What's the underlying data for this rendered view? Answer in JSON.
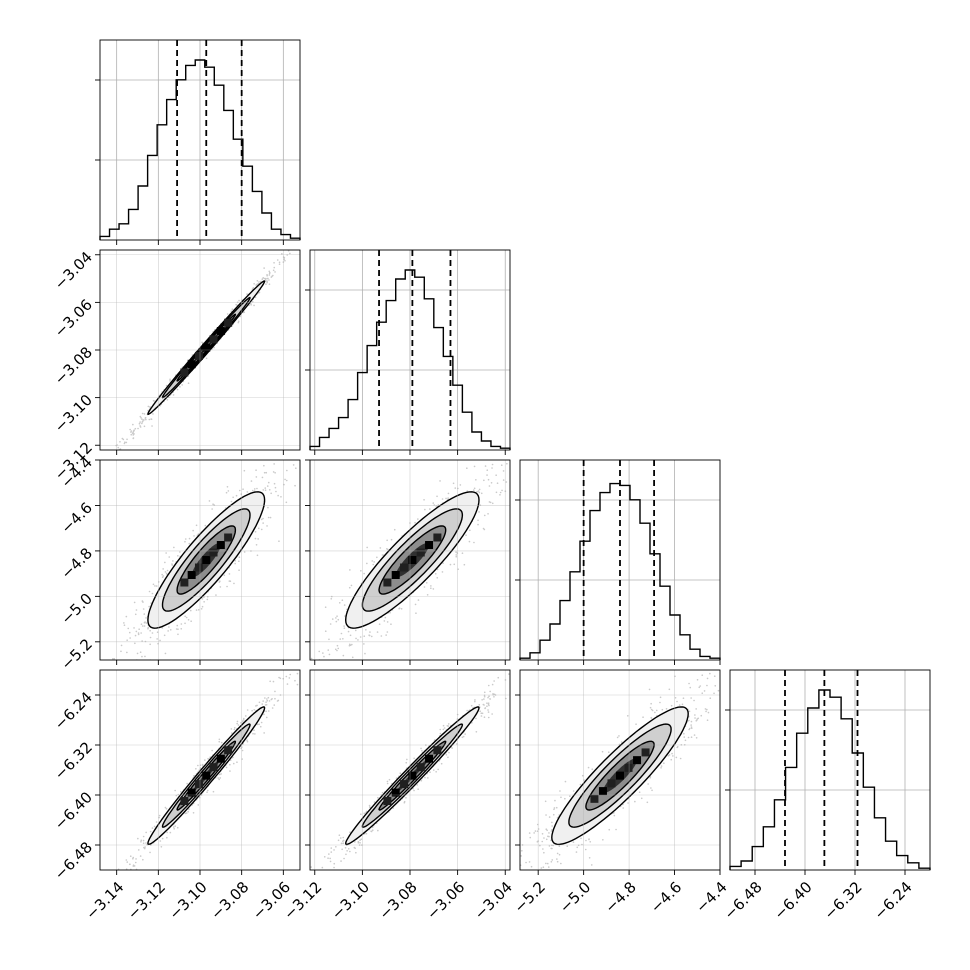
{
  "chart_data": {
    "type": "corner",
    "params": [
      {
        "range": [
          -3.148,
          -3.052
        ],
        "ticks": [
          "-3.14",
          "-3.12",
          "-3.10",
          "-3.08",
          "-3.06"
        ],
        "quantiles": [
          -3.111,
          -3.097,
          -3.08
        ],
        "median": -3.097,
        "sigma": 0.014,
        "hist": [
          0.02,
          0.06,
          0.09,
          0.17,
          0.3,
          0.47,
          0.64,
          0.78,
          0.89,
          0.97,
          1.0,
          0.96,
          0.86,
          0.72,
          0.56,
          0.41,
          0.27,
          0.15,
          0.06,
          0.03,
          0.01
        ]
      },
      {
        "range": [
          -3.122,
          -3.038
        ],
        "ticks": [
          "-3.12",
          "-3.10",
          "-3.08",
          "-3.06",
          "-3.04"
        ],
        "quantiles": [
          -3.093,
          -3.079,
          -3.063
        ],
        "median": -3.079,
        "sigma": 0.014,
        "hist": [
          0.02,
          0.07,
          0.12,
          0.18,
          0.28,
          0.43,
          0.58,
          0.71,
          0.83,
          0.95,
          1.0,
          0.96,
          0.84,
          0.68,
          0.52,
          0.36,
          0.21,
          0.1,
          0.05,
          0.02,
          0.01
        ]
      },
      {
        "range": [
          -5.28,
          -4.4
        ],
        "ticks": [
          "-5.2",
          "-5.0",
          "-4.8",
          "-4.6",
          "-4.4"
        ],
        "quantiles": [
          -5.0,
          -4.84,
          -4.69
        ],
        "median": -4.84,
        "sigma": 0.15,
        "hist": [
          0.01,
          0.04,
          0.11,
          0.2,
          0.33,
          0.49,
          0.66,
          0.83,
          0.93,
          0.98,
          0.97,
          0.89,
          0.76,
          0.59,
          0.41,
          0.25,
          0.14,
          0.06,
          0.02,
          0.01
        ]
      },
      {
        "range": [
          -6.52,
          -6.2
        ],
        "ticks": [
          "-6.48",
          "-6.40",
          "-6.32",
          "-6.24"
        ],
        "quantiles": [
          -6.432,
          -6.369,
          -6.316
        ],
        "median": -6.369,
        "sigma": 0.055,
        "hist": [
          0.02,
          0.05,
          0.13,
          0.24,
          0.39,
          0.57,
          0.76,
          0.9,
          1.0,
          0.96,
          0.84,
          0.65,
          0.46,
          0.29,
          0.16,
          0.08,
          0.04,
          0.01
        ]
      }
    ],
    "correlations": {
      "1-0": 0.995,
      "2-0": 0.88,
      "2-1": 0.88,
      "3-0": 0.985,
      "3-1": 0.985,
      "3-2": 0.9
    },
    "contour_levels_sigma": [
      0.5,
      1.0,
      1.5,
      2.0
    ],
    "grid": true
  }
}
